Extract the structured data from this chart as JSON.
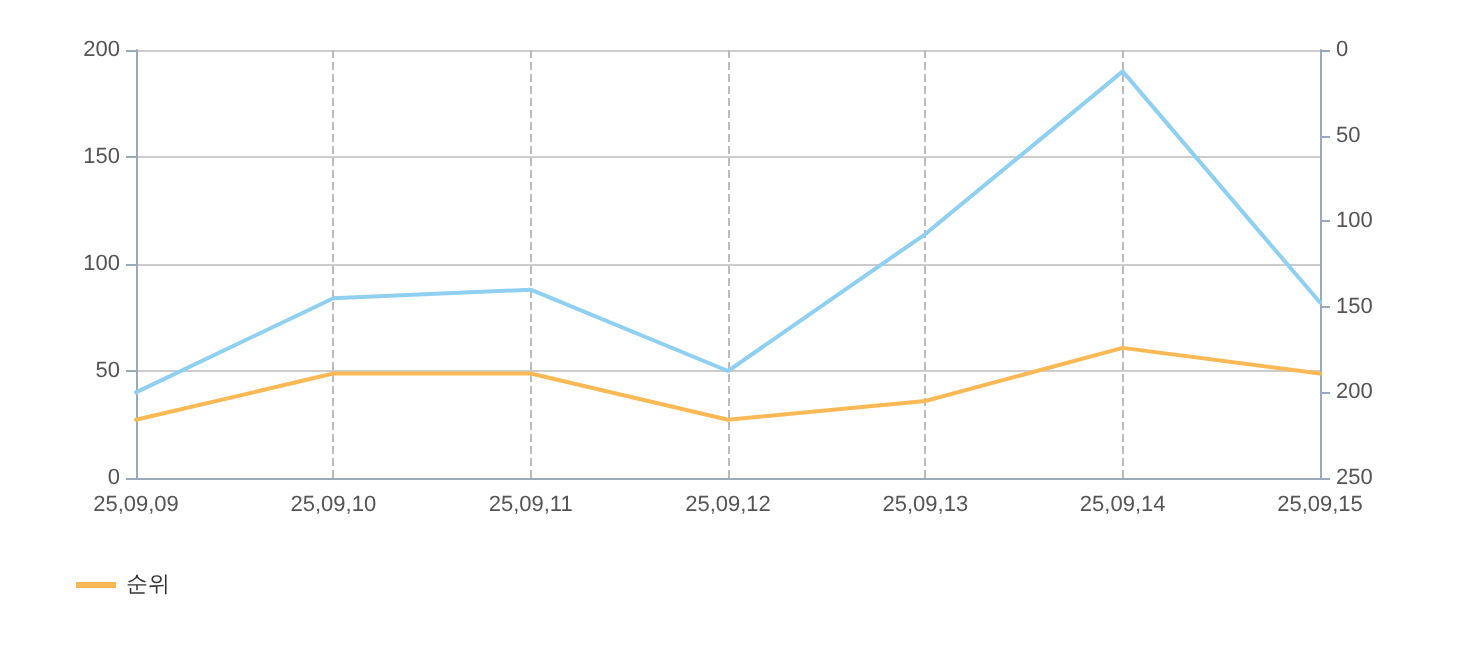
{
  "chart_data": {
    "type": "line",
    "categories": [
      "25,09,09",
      "25,09,10",
      "25,09,11",
      "25,09,12",
      "25,09,13",
      "25,09,14",
      "25,09,15"
    ],
    "series": [
      {
        "color": "#8fd0f0",
        "values": [
          40,
          84,
          88,
          50,
          114,
          190,
          82
        ]
      },
      {
        "name": "순위",
        "color": "#fbb955",
        "axis": "y2",
        "values": [
          216,
          189,
          189,
          216,
          205,
          174,
          189
        ]
      }
    ],
    "ylim": [
      0,
      200
    ],
    "yticks": [
      0,
      50,
      100,
      150,
      200
    ],
    "y2lim": [
      250,
      0
    ],
    "y2ticks": [
      0,
      50,
      100,
      150,
      200,
      250
    ],
    "grid": true,
    "legend": "bottom left",
    "marker": "none",
    "line_style": "solid"
  }
}
